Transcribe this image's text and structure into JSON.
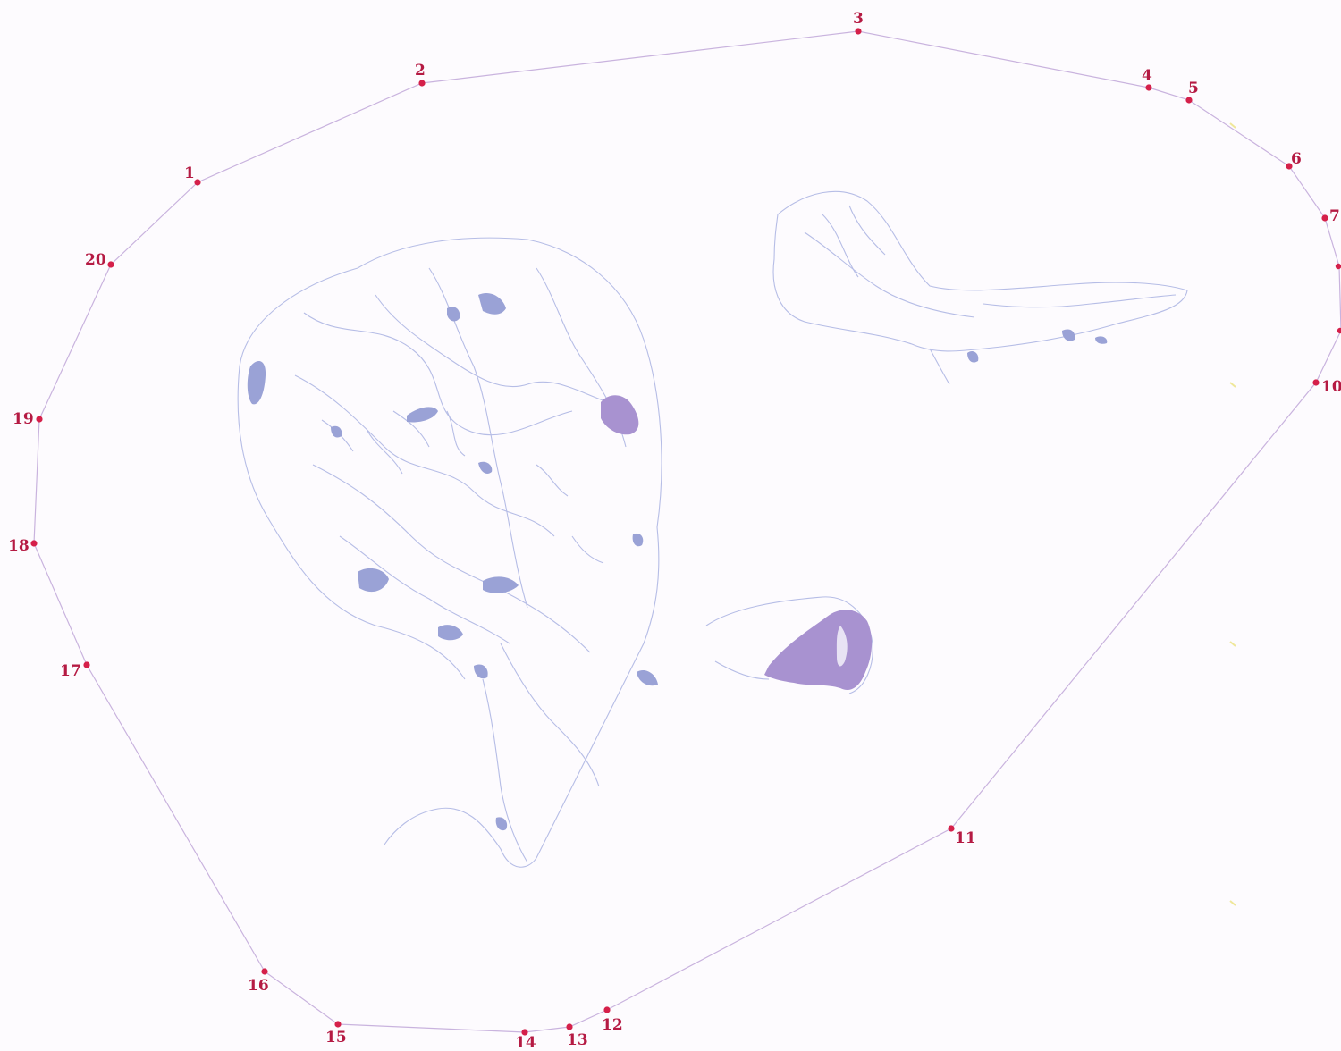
{
  "colors": {
    "background": "#fdfbfe",
    "outline": "#c9b3de",
    "vertex": "#d5204a",
    "label": "#b51a43",
    "tissue": "#b6bde6",
    "tissue_dense": "#9aa2d6",
    "tissue_purple": "#a892d0"
  },
  "vertices": [
    {
      "label": "1"
    },
    {
      "label": "2"
    },
    {
      "label": "3"
    },
    {
      "label": "4"
    },
    {
      "label": "5"
    },
    {
      "label": "6"
    },
    {
      "label": "7"
    },
    {
      "label": "10"
    },
    {
      "label": "11"
    },
    {
      "label": "12"
    },
    {
      "label": "13"
    },
    {
      "label": "14"
    },
    {
      "label": "15"
    },
    {
      "label": "16"
    },
    {
      "label": "17"
    },
    {
      "label": "18"
    },
    {
      "label": "19"
    },
    {
      "label": "20"
    }
  ]
}
